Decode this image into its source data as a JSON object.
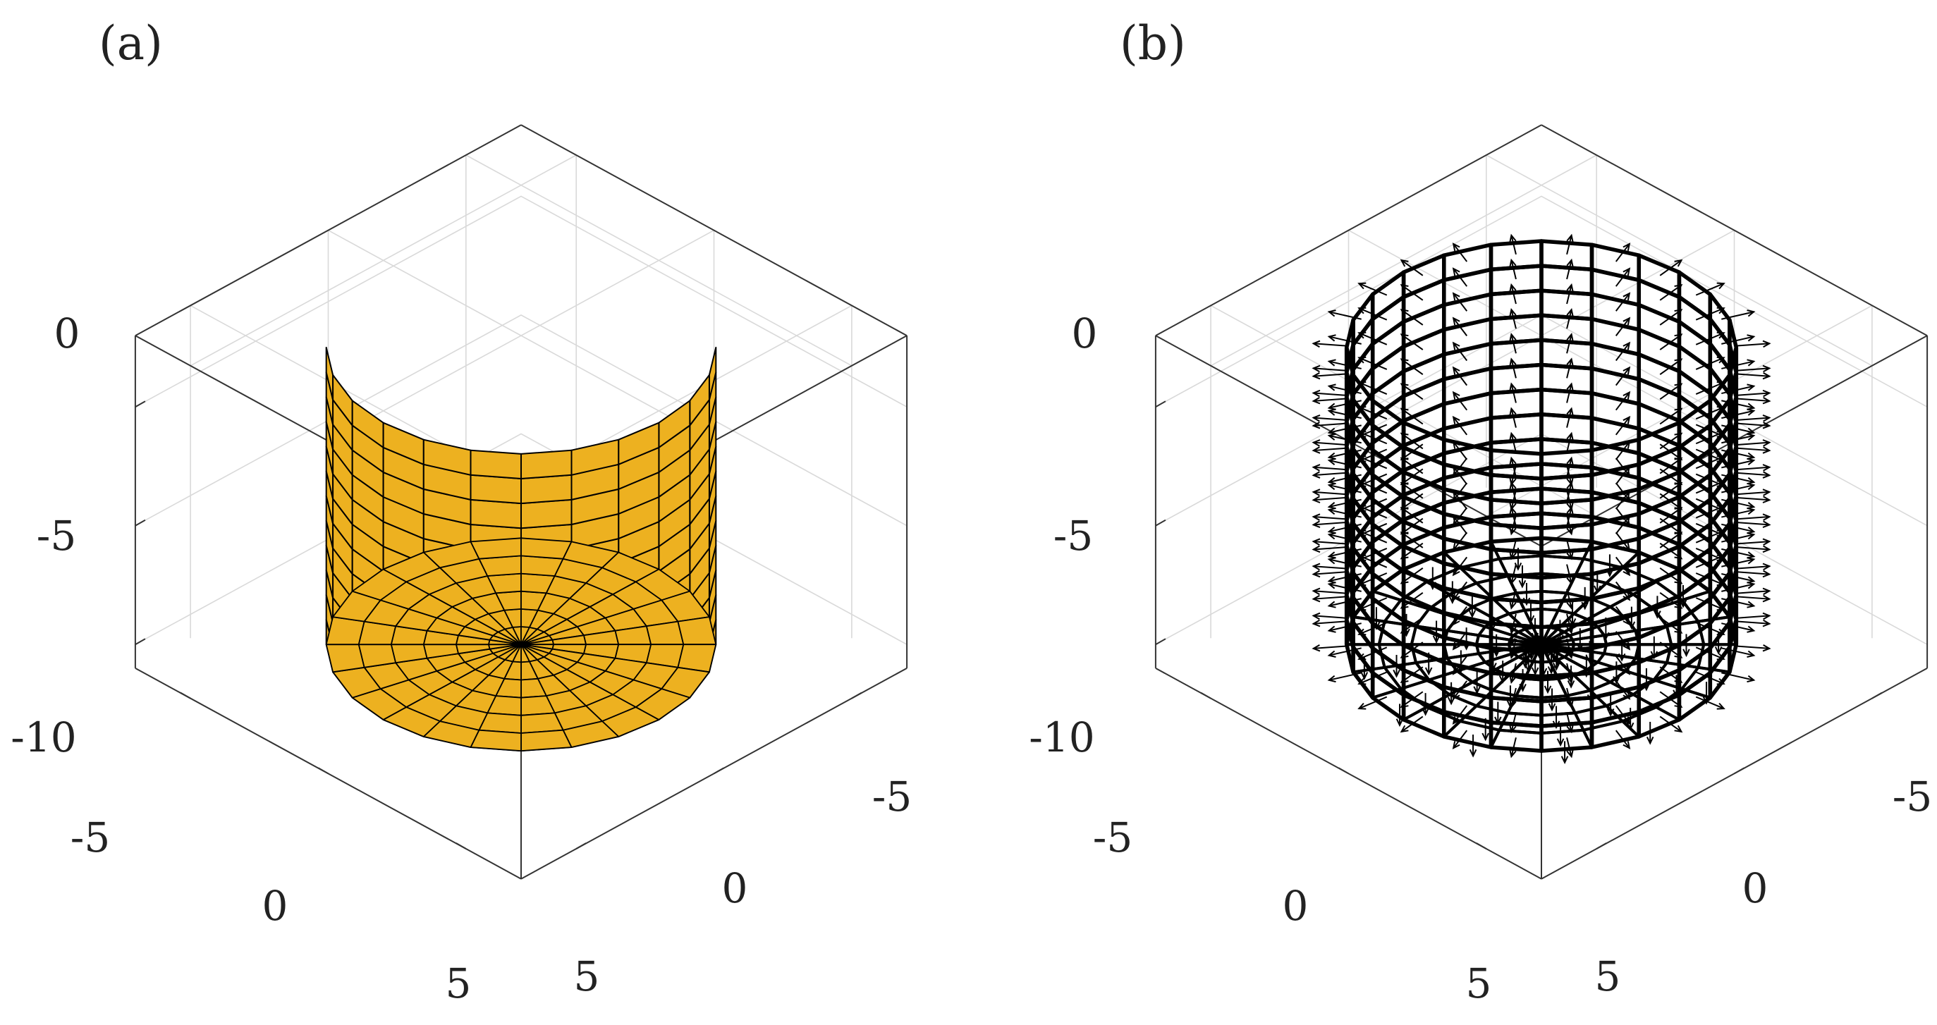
{
  "panels": [
    {
      "label": "(a)",
      "style": "surface",
      "z_ticks": [
        "0",
        "-5",
        "-10"
      ],
      "x_ticks": [
        "-5",
        "0",
        "5"
      ],
      "y_ticks": [
        "-5",
        "0",
        "5"
      ]
    },
    {
      "label": "(b)",
      "style": "wireframe-with-normals",
      "z_ticks": [
        "0",
        "-5",
        "-10"
      ],
      "x_ticks": [
        "-5",
        "0",
        "5"
      ],
      "y_ticks": [
        "-5",
        "0",
        "5"
      ]
    }
  ],
  "cylinder": {
    "radius": 5,
    "z_top": 2.5,
    "z_bottom": -10,
    "segments": 24,
    "height_divisions": 12,
    "cap_rings": 6
  },
  "axes": {
    "x_range": [
      -7,
      7
    ],
    "y_range": [
      -7,
      7
    ],
    "z_range": [
      -11,
      3
    ]
  },
  "colors": {
    "surface_fill": "#edb120",
    "mesh_edge": "#000000",
    "axis_box": "#333333",
    "grid": "#d9d9d9"
  }
}
